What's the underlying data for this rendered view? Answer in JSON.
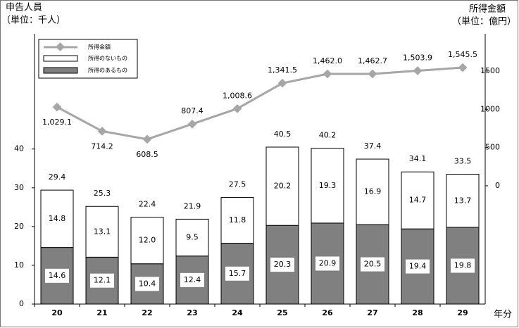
{
  "chart_data": {
    "type": "bar-line",
    "y_title": "申告人員",
    "y_unit": "（単位：千人）",
    "y2_title": "所得金額",
    "y2_unit": "（単位：億円）",
    "x_title": "年分",
    "categories": [
      "20",
      "21",
      "22",
      "23",
      "24",
      "25",
      "26",
      "27",
      "28",
      "29"
    ],
    "series": [
      {
        "name": "所得のあるもの",
        "color": "#808080",
        "values": [
          14.6,
          12.1,
          10.4,
          12.4,
          15.7,
          20.3,
          20.9,
          20.5,
          19.4,
          19.8
        ]
      },
      {
        "name": "所得のないもの",
        "color": "#ffffff",
        "values": [
          14.8,
          13.1,
          12.0,
          9.5,
          11.8,
          20.2,
          19.3,
          16.9,
          14.7,
          13.7
        ],
        "value_labels": [
          "14.8",
          "13.1",
          "12.0",
          "9.5",
          "11.8",
          "20.2",
          "19.3",
          "16.9",
          "14.7",
          "13.7"
        ]
      },
      {
        "name": "所得金額",
        "color": "#a6a6a6",
        "axis": "y2",
        "values": [
          1029.1,
          714.2,
          608.5,
          807.4,
          1008.6,
          1341.5,
          1462.0,
          1462.7,
          1503.9,
          1545.5
        ],
        "value_labels": [
          "1,029.1",
          "714.2",
          "608.5",
          "807.4",
          "1,008.6",
          "1,341.5",
          "1,462.0",
          "1,462.7",
          "1,503.9",
          "1,545.5"
        ]
      }
    ],
    "totals": [
      29.4,
      25.3,
      22.4,
      21.9,
      27.5,
      40.5,
      40.2,
      37.4,
      34.1,
      33.5
    ],
    "ylim": [
      0,
      77
    ],
    "yticks": [
      0,
      10,
      20,
      30,
      40
    ],
    "y2lim": [
      -1546,
      2355
    ],
    "y2ticks": [
      0,
      500,
      1000,
      1500
    ]
  }
}
